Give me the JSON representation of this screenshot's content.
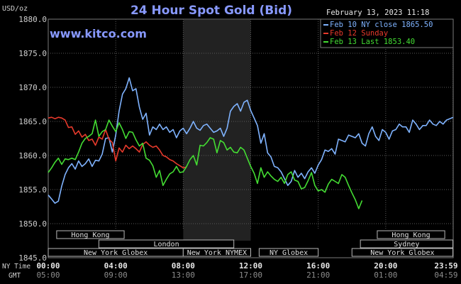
{
  "chart_data": {
    "type": "line",
    "title": "24 Hour Spot Gold (Bid)",
    "ylabel": "USD/oz",
    "datetime": "February 13, 2023 11:18",
    "website": "www.kitco.com",
    "ylim": [
      1845,
      1880
    ],
    "yticks": [
      "1880.0",
      "1875.0",
      "1870.0",
      "1865.0",
      "1860.0",
      "1855.0",
      "1850.0",
      "1845.0"
    ],
    "xlim": [
      0,
      24
    ],
    "ny_time_label": "NY Time",
    "gmt_label": "GMT",
    "ny_time_ticks": [
      {
        "t": 0,
        "label": "00:00"
      },
      {
        "t": 4,
        "label": "04:00"
      },
      {
        "t": 8,
        "label": "08:00"
      },
      {
        "t": 12,
        "label": "12:00"
      },
      {
        "t": 16,
        "label": "16:00"
      },
      {
        "t": 20,
        "label": "20:00"
      },
      {
        "t": 23.98,
        "label": "23:59"
      }
    ],
    "gmt_ticks": [
      {
        "t": 0,
        "label": "05:00"
      },
      {
        "t": 4,
        "label": "09:00"
      },
      {
        "t": 8,
        "label": "13:00"
      },
      {
        "t": 12,
        "label": "17:00"
      },
      {
        "t": 16,
        "label": "21:00"
      },
      {
        "t": 20,
        "label": "01:00"
      },
      {
        "t": 23.98,
        "label": "04:59"
      }
    ],
    "shaded_periods": [
      [
        8,
        12
      ]
    ],
    "legend": [
      {
        "name": "Feb 10 NY close 1865.50",
        "color": "#7fb3ff"
      },
      {
        "name": "Feb 12 Sunday",
        "color": "#e83a2c"
      },
      {
        "name": "Feb 13 Last 1853.40",
        "color": "#44dd33"
      }
    ],
    "markets": [
      {
        "name": "Hong Kong",
        "row": 0,
        "start": 0.5,
        "end": 4.5
      },
      {
        "name": "Hong Kong",
        "row": 0,
        "start": 19.5,
        "end": 23.5
      },
      {
        "name": "London",
        "row": 1,
        "start": 3,
        "end": 11
      },
      {
        "name": "Sydney",
        "row": 1,
        "start": 18.5,
        "end": 23.98
      },
      {
        "name": "New York Globex",
        "row": 2,
        "start": 0,
        "end": 8
      },
      {
        "name": "New York NYMEX",
        "row": 2,
        "start": 8,
        "end": 12
      },
      {
        "name": "NY Globex",
        "row": 2,
        "start": 12.5,
        "end": 16
      },
      {
        "name": "New York Globex",
        "row": 2,
        "start": 18,
        "end": 23.98
      }
    ],
    "series": [
      {
        "name": "Feb 10 NY close 1865.50",
        "color": "#7fb3ff",
        "points": [
          [
            0,
            1854.2
          ],
          [
            0.2,
            1853.6
          ],
          [
            0.4,
            1853
          ],
          [
            0.6,
            1853.3
          ],
          [
            0.8,
            1855.5
          ],
          [
            1,
            1857.2
          ],
          [
            1.2,
            1858.2
          ],
          [
            1.4,
            1858.8
          ],
          [
            1.6,
            1858
          ],
          [
            1.8,
            1859.2
          ],
          [
            2,
            1858.4
          ],
          [
            2.2,
            1858.8
          ],
          [
            2.4,
            1859.5
          ],
          [
            2.6,
            1858.4
          ],
          [
            2.8,
            1859.3
          ],
          [
            3,
            1859.2
          ],
          [
            3.2,
            1860.2
          ],
          [
            3.4,
            1862.5
          ],
          [
            3.6,
            1862.6
          ],
          [
            3.8,
            1860.5
          ],
          [
            4,
            1863
          ],
          [
            4.2,
            1866.5
          ],
          [
            4.4,
            1869
          ],
          [
            4.6,
            1869.8
          ],
          [
            4.8,
            1871.4
          ],
          [
            5,
            1869.5
          ],
          [
            5.2,
            1869.8
          ],
          [
            5.4,
            1867.1
          ],
          [
            5.6,
            1865.3
          ],
          [
            5.8,
            1866.2
          ],
          [
            6,
            1863
          ],
          [
            6.2,
            1864.2
          ],
          [
            6.4,
            1863.8
          ],
          [
            6.6,
            1864.6
          ],
          [
            6.8,
            1863.8
          ],
          [
            7,
            1864.2
          ],
          [
            7.2,
            1863.4
          ],
          [
            7.4,
            1863.8
          ],
          [
            7.6,
            1862.6
          ],
          [
            7.8,
            1863.6
          ],
          [
            8,
            1864
          ],
          [
            8.2,
            1863.2
          ],
          [
            8.4,
            1864
          ],
          [
            8.6,
            1865
          ],
          [
            8.8,
            1864
          ],
          [
            9,
            1863.7
          ],
          [
            9.2,
            1864.4
          ],
          [
            9.4,
            1864.6
          ],
          [
            9.6,
            1864
          ],
          [
            9.8,
            1863.4
          ],
          [
            10,
            1863.6
          ],
          [
            10.2,
            1864
          ],
          [
            10.4,
            1862.8
          ],
          [
            10.6,
            1864
          ],
          [
            10.8,
            1866.5
          ],
          [
            11,
            1867.2
          ],
          [
            11.2,
            1867.6
          ],
          [
            11.4,
            1866.5
          ],
          [
            11.6,
            1867.8
          ],
          [
            11.8,
            1868.1
          ],
          [
            12,
            1866.6
          ],
          [
            12.2,
            1865.5
          ],
          [
            12.4,
            1864.4
          ],
          [
            12.6,
            1861.8
          ],
          [
            12.8,
            1863.2
          ],
          [
            13,
            1860.4
          ],
          [
            13.2,
            1859.8
          ],
          [
            13.4,
            1858.4
          ],
          [
            13.6,
            1858.2
          ],
          [
            13.8,
            1857.6
          ],
          [
            14,
            1856.6
          ],
          [
            14.2,
            1855.6
          ],
          [
            14.4,
            1856.2
          ],
          [
            14.6,
            1857.8
          ],
          [
            14.8,
            1856.8
          ],
          [
            15,
            1857.4
          ],
          [
            15.2,
            1856.6
          ],
          [
            15.4,
            1857.6
          ],
          [
            15.6,
            1858.2
          ],
          [
            15.8,
            1857.4
          ],
          [
            16,
            1858.6
          ],
          [
            16.2,
            1859.4
          ],
          [
            16.4,
            1860.8
          ],
          [
            16.6,
            1860.6
          ],
          [
            16.8,
            1861
          ],
          [
            17,
            1860.2
          ],
          [
            17.2,
            1862.4
          ],
          [
            17.4,
            1862.2
          ],
          [
            17.6,
            1862
          ],
          [
            17.8,
            1863
          ],
          [
            18,
            1862.8
          ],
          [
            18.2,
            1862.6
          ],
          [
            18.4,
            1863.2
          ],
          [
            18.6,
            1861.8
          ],
          [
            18.8,
            1861.4
          ],
          [
            19,
            1863.2
          ],
          [
            19.2,
            1864.2
          ],
          [
            19.4,
            1862.8
          ],
          [
            19.6,
            1862.2
          ],
          [
            19.8,
            1863.8
          ],
          [
            20,
            1863.4
          ],
          [
            20.2,
            1862.4
          ],
          [
            20.4,
            1863.6
          ],
          [
            20.6,
            1863.8
          ],
          [
            20.8,
            1864.6
          ],
          [
            21,
            1864.2
          ],
          [
            21.2,
            1864.2
          ],
          [
            21.4,
            1863.4
          ],
          [
            21.6,
            1865.2
          ],
          [
            21.8,
            1864.6
          ],
          [
            22,
            1863.8
          ],
          [
            22.2,
            1864.4
          ],
          [
            22.4,
            1864.4
          ],
          [
            22.6,
            1865.2
          ],
          [
            22.8,
            1864.6
          ],
          [
            23,
            1864.4
          ],
          [
            23.2,
            1865
          ],
          [
            23.4,
            1864.6
          ],
          [
            23.6,
            1865.2
          ],
          [
            23.8,
            1865.4
          ],
          [
            24,
            1865.6
          ]
        ]
      },
      {
        "name": "Feb 12 Sunday",
        "color": "#e83a2c",
        "points": [
          [
            0,
            1865.5
          ],
          [
            0.2,
            1865.6
          ],
          [
            0.4,
            1865.4
          ],
          [
            0.6,
            1865.6
          ],
          [
            0.8,
            1865.5
          ],
          [
            1,
            1865.2
          ],
          [
            1.2,
            1864.1
          ],
          [
            1.4,
            1864.2
          ],
          [
            1.6,
            1863.1
          ],
          [
            1.8,
            1863.6
          ],
          [
            2,
            1862.7
          ],
          [
            2.2,
            1863.1
          ],
          [
            2.4,
            1862.2
          ],
          [
            2.6,
            1862.4
          ],
          [
            2.8,
            1861.5
          ],
          [
            3,
            1862.7
          ],
          [
            3.2,
            1862.4
          ],
          [
            3.4,
            1863.8
          ],
          [
            3.6,
            1862.4
          ],
          [
            3.8,
            1861.9
          ],
          [
            4,
            1859.2
          ],
          [
            4.2,
            1861.1
          ],
          [
            4.4,
            1860.5
          ],
          [
            4.6,
            1861.5
          ],
          [
            4.8,
            1861
          ],
          [
            5,
            1861.4
          ],
          [
            5.2,
            1861
          ],
          [
            5.4,
            1860.5
          ],
          [
            5.6,
            1861.6
          ],
          [
            5.8,
            1862
          ],
          [
            6,
            1861.5
          ],
          [
            6.2,
            1861.2
          ],
          [
            6.4,
            1861.4
          ],
          [
            6.6,
            1860.8
          ],
          [
            6.8,
            1860
          ],
          [
            7,
            1859.8
          ],
          [
            7.2,
            1859.4
          ],
          [
            7.4,
            1859.2
          ],
          [
            7.6,
            1858.8
          ],
          [
            7.8,
            1858.5
          ],
          [
            8,
            1858.2
          ],
          [
            8.2,
            1858.3
          ]
        ]
      },
      {
        "name": "Feb 13 Last 1853.40",
        "color": "#44dd33",
        "points": [
          [
            0,
            1857.5
          ],
          [
            0.2,
            1858.2
          ],
          [
            0.4,
            1859
          ],
          [
            0.6,
            1859.6
          ],
          [
            0.8,
            1858.7
          ],
          [
            1,
            1859.5
          ],
          [
            1.2,
            1859.4
          ],
          [
            1.4,
            1859.6
          ],
          [
            1.6,
            1859.4
          ],
          [
            1.8,
            1860.5
          ],
          [
            2,
            1861.8
          ],
          [
            2.2,
            1862.5
          ],
          [
            2.4,
            1862.8
          ],
          [
            2.6,
            1863.2
          ],
          [
            2.8,
            1865.2
          ],
          [
            3,
            1862.8
          ],
          [
            3.2,
            1863.5
          ],
          [
            3.4,
            1863.8
          ],
          [
            3.6,
            1865.2
          ],
          [
            3.8,
            1864.3
          ],
          [
            4,
            1863.5
          ],
          [
            4.2,
            1864.8
          ],
          [
            4.4,
            1863.8
          ],
          [
            4.6,
            1862.5
          ],
          [
            4.8,
            1863.5
          ],
          [
            5,
            1863.4
          ],
          [
            5.2,
            1862.3
          ],
          [
            5.4,
            1861.4
          ],
          [
            5.6,
            1861.8
          ],
          [
            5.8,
            1859.6
          ],
          [
            6,
            1859.3
          ],
          [
            6.2,
            1858.5
          ],
          [
            6.4,
            1856.8
          ],
          [
            6.6,
            1857.8
          ],
          [
            6.8,
            1855.6
          ],
          [
            7,
            1856.5
          ],
          [
            7.2,
            1857.3
          ],
          [
            7.4,
            1857.6
          ],
          [
            7.6,
            1858.4
          ],
          [
            7.8,
            1857.5
          ],
          [
            8,
            1857.6
          ],
          [
            8.2,
            1858.4
          ],
          [
            8.4,
            1859.4
          ],
          [
            8.6,
            1860
          ],
          [
            8.8,
            1858.6
          ],
          [
            9,
            1861.5
          ],
          [
            9.2,
            1861.4
          ],
          [
            9.4,
            1861.9
          ],
          [
            9.6,
            1862.6
          ],
          [
            9.8,
            1862.4
          ],
          [
            10,
            1860.4
          ],
          [
            10.2,
            1862.2
          ],
          [
            10.4,
            1861.9
          ],
          [
            10.6,
            1860.8
          ],
          [
            10.8,
            1861.2
          ],
          [
            11,
            1860.5
          ],
          [
            11.2,
            1860.4
          ],
          [
            11.4,
            1861.2
          ],
          [
            11.6,
            1860.8
          ],
          [
            11.8,
            1859.6
          ],
          [
            12,
            1858.4
          ],
          [
            12.2,
            1857.4
          ],
          [
            12.4,
            1855.9
          ],
          [
            12.6,
            1858.2
          ],
          [
            12.8,
            1856.8
          ],
          [
            13,
            1857.6
          ],
          [
            13.2,
            1857
          ],
          [
            13.4,
            1856.5
          ],
          [
            13.6,
            1856.2
          ],
          [
            13.8,
            1856.8
          ],
          [
            14,
            1855.9
          ],
          [
            14.2,
            1857.2
          ],
          [
            14.4,
            1857.6
          ],
          [
            14.6,
            1856.4
          ],
          [
            14.8,
            1856.2
          ],
          [
            15,
            1855.1
          ],
          [
            15.2,
            1855.3
          ],
          [
            15.4,
            1856.3
          ],
          [
            15.6,
            1857.5
          ],
          [
            15.8,
            1855.6
          ],
          [
            16,
            1854.8
          ],
          [
            16.2,
            1855
          ],
          [
            16.4,
            1854.6
          ],
          [
            16.6,
            1855.8
          ],
          [
            16.8,
            1856.5
          ],
          [
            17,
            1856.2
          ],
          [
            17.2,
            1855.9
          ],
          [
            17.4,
            1857.2
          ],
          [
            17.6,
            1856.8
          ],
          [
            17.8,
            1855.6
          ],
          [
            18,
            1854.5
          ],
          [
            18.2,
            1853.5
          ],
          [
            18.4,
            1852.2
          ],
          [
            18.6,
            1853.4
          ]
        ]
      }
    ]
  }
}
